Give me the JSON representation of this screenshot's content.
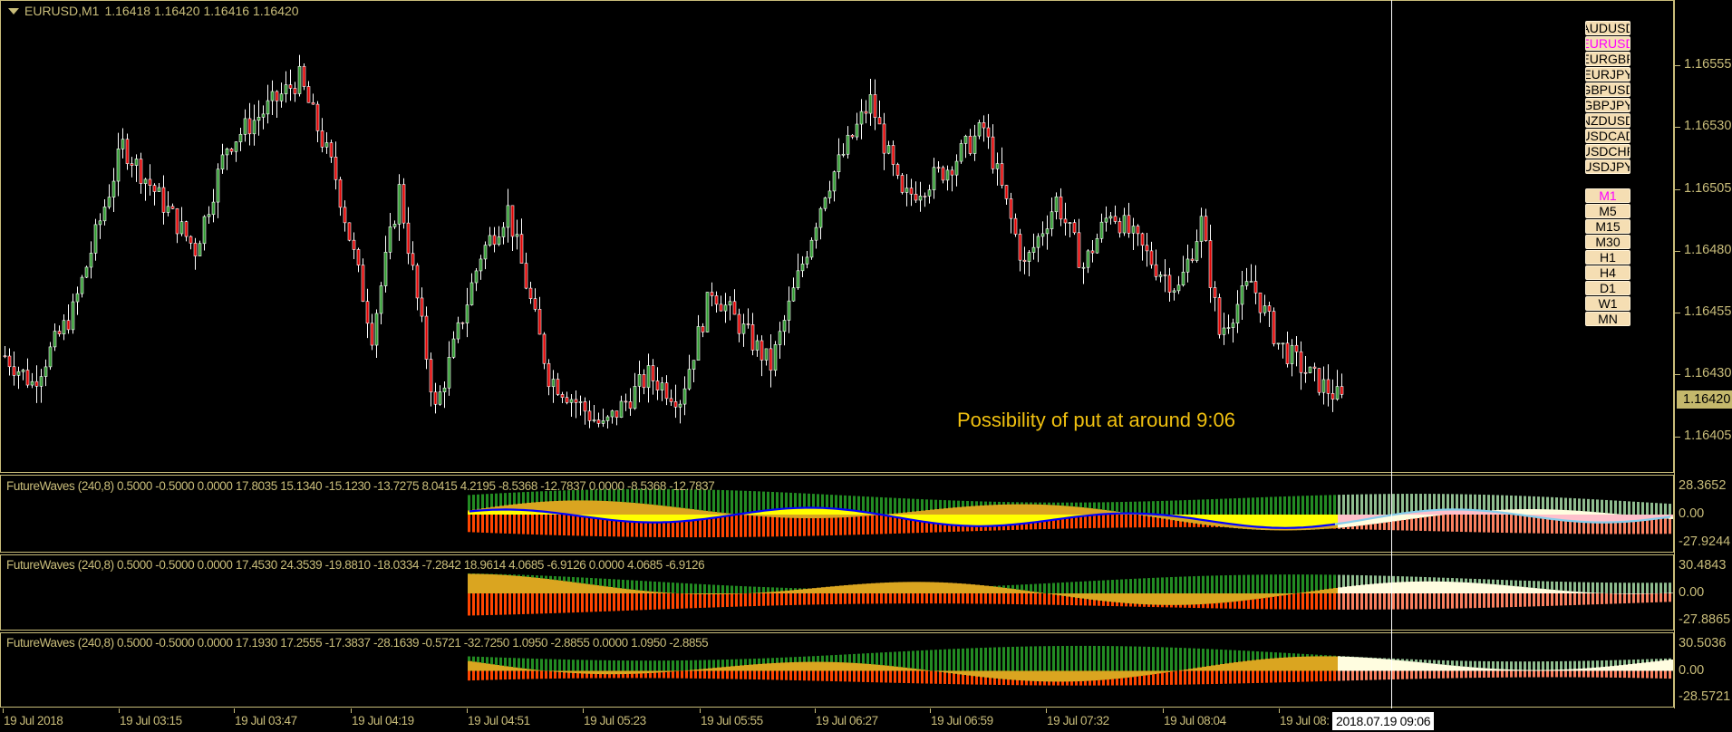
{
  "header": {
    "symbol": "EURUSD,M1",
    "quotes": "1.16418 1.16420 1.16416 1.16420"
  },
  "price_axis": {
    "ticks": [
      "1.16555",
      "1.16530",
      "1.16505",
      "1.16480",
      "1.16455",
      "1.16430",
      "1.16405"
    ],
    "current": "1.16420"
  },
  "symbols": [
    {
      "label": "AUDUSD"
    },
    {
      "label": "EURUSD",
      "active": true
    },
    {
      "label": "EURGBP"
    },
    {
      "label": "EURJPY"
    },
    {
      "label": "GBPUSD"
    },
    {
      "label": "GBPJPY"
    },
    {
      "label": "NZDUSD"
    },
    {
      "label": "USDCAD"
    },
    {
      "label": "USDCHF"
    },
    {
      "label": "USDJPY"
    }
  ],
  "timeframes": [
    {
      "label": "M1",
      "active": true
    },
    {
      "label": "M5"
    },
    {
      "label": "M15"
    },
    {
      "label": "M30"
    },
    {
      "label": "H1"
    },
    {
      "label": "H4"
    },
    {
      "label": "D1"
    },
    {
      "label": "W1"
    },
    {
      "label": "MN"
    }
  ],
  "annotation": "Possibility of put at around 9:06",
  "indicators": [
    {
      "label": "FutureWaves (240,8) 0.5000 -0.5000 0.0000 17.8035 15.1340 -15.1230 -13.7275 8.0415 4.2195 -8.5368 -12.7837 0.0000 -8.5368 -12.7837",
      "max": "28.3652",
      "zero": "0.00",
      "min": "-27.9244"
    },
    {
      "label": "FutureWaves (240,8) 0.5000 -0.5000 0.0000 17.4530 24.3539 -19.8810 -18.0334 -7.2842 18.9614 4.0685 -6.9126 0.0000 4.0685 -6.9126",
      "max": "30.4843",
      "zero": "0.00",
      "min": "-27.8865"
    },
    {
      "label": "FutureWaves (240,8) 0.5000 -0.5000 0.0000 17.1930 17.2555 -17.3837 -28.1639 -0.5721 -32.7250 1.0950 -2.8855 0.0000 1.0950 -2.8855",
      "max": "30.5036",
      "zero": "0.00",
      "min": "-28.5721"
    }
  ],
  "time_axis": {
    "labels": [
      "19 Jul 2018",
      "19 Jul 03:15",
      "19 Jul 03:47",
      "19 Jul 04:19",
      "19 Jul 04:51",
      "19 Jul 05:23",
      "19 Jul 05:55",
      "19 Jul 06:27",
      "19 Jul 06:59",
      "19 Jul 07:32",
      "19 Jul 08:04",
      "19 Jul 08:"
    ],
    "cursor": "2018.07.19 09:06"
  },
  "colors": {
    "bull": "#2e9a2e",
    "bear": "#e00000",
    "axis": "#c9bd7a",
    "up_bars": "#228b22",
    "down_bars": "#ff4500",
    "wave": "#daa520",
    "wave_line": "#0000ff",
    "fill": "#ffff00",
    "future_up": "#8fbc8f",
    "future_down": "#fa8060",
    "future_wave": "#fffde0",
    "future_fill": "#ffc0cb",
    "future_line": "#87ceeb"
  },
  "chart_data": {
    "type": "candlestick",
    "price_path": [
      [
        0,
        1.16438
      ],
      [
        6,
        1.16427
      ],
      [
        15,
        1.16456
      ],
      [
        26,
        1.16523
      ],
      [
        42,
        1.16481
      ],
      [
        49,
        1.16523
      ],
      [
        65,
        1.1655
      ],
      [
        73,
        1.1651
      ],
      [
        81,
        1.16447
      ],
      [
        87,
        1.16505
      ],
      [
        95,
        1.16416
      ],
      [
        105,
        1.16479
      ],
      [
        111,
        1.16497
      ],
      [
        120,
        1.1643
      ],
      [
        132,
        1.16409
      ],
      [
        142,
        1.1643
      ],
      [
        149,
        1.16421
      ],
      [
        156,
        1.16465
      ],
      [
        169,
        1.16434
      ],
      [
        181,
        1.16505
      ],
      [
        191,
        1.16541
      ],
      [
        198,
        1.16501
      ],
      [
        208,
        1.16514
      ],
      [
        216,
        1.1653
      ],
      [
        225,
        1.16474
      ],
      [
        232,
        1.16501
      ],
      [
        238,
        1.16474
      ],
      [
        244,
        1.16497
      ],
      [
        254,
        1.16474
      ],
      [
        259,
        1.16465
      ],
      [
        264,
        1.16492
      ],
      [
        268,
        1.16447
      ],
      [
        275,
        1.16468
      ],
      [
        281,
        1.16443
      ],
      [
        288,
        1.1643
      ],
      [
        295,
        1.1642
      ]
    ]
  }
}
